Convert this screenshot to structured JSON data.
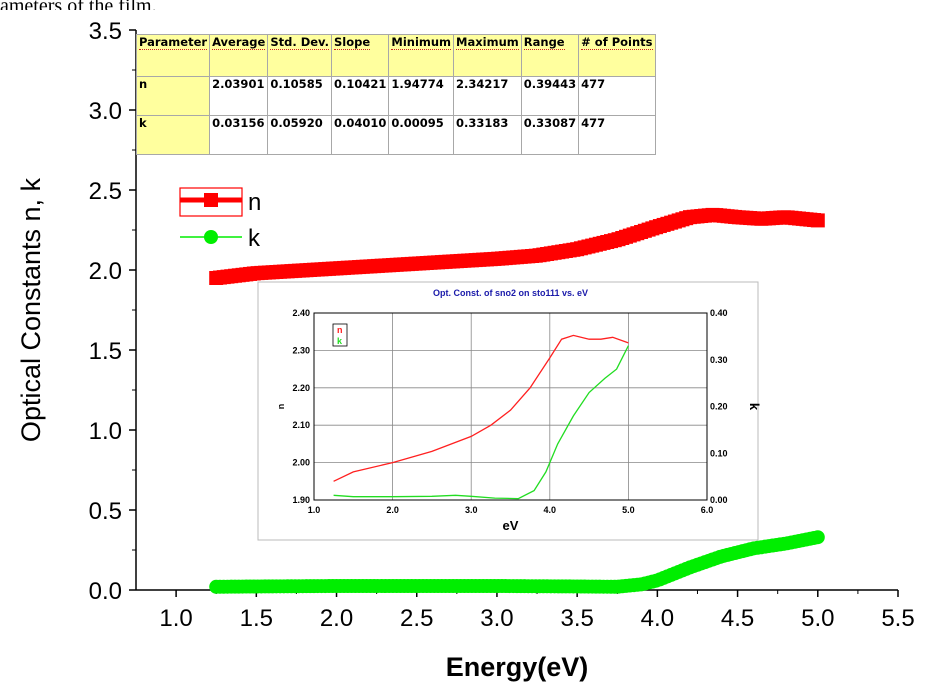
{
  "caption": "ameters of the film.",
  "stats_table": {
    "headers": [
      "Parameter",
      "Average",
      "Std. Dev.",
      "Slope",
      "Minimum",
      "Maximum",
      "Range",
      "# of Points"
    ],
    "rows": [
      [
        "n",
        "2.03901",
        "0.10585",
        "0.10421",
        "1.94774",
        "2.34217",
        "0.39443",
        "477"
      ],
      [
        "k",
        "0.03156",
        "0.05920",
        "0.04010",
        "0.00095",
        "0.33183",
        "0.33087",
        "477"
      ]
    ]
  },
  "chart_data": [
    {
      "type": "scatter",
      "title": "",
      "xlabel": "Energy(eV)",
      "ylabel": "Optical Constants n, k",
      "xlim": [
        0.75,
        5.5
      ],
      "ylim": [
        0.0,
        3.5
      ],
      "xticks": [
        "1.0",
        "1.5",
        "2.0",
        "2.5",
        "3.0",
        "3.5",
        "4.0",
        "4.5",
        "5.0",
        "5.5"
      ],
      "yticks": [
        "0.0",
        "0.5",
        "1.0",
        "1.5",
        "2.0",
        "2.5",
        "3.0",
        "3.5"
      ],
      "legend": "upper-left",
      "series": [
        {
          "name": "n",
          "color": "#ff0000",
          "marker": "square",
          "x": [
            1.25,
            1.5,
            2.0,
            2.5,
            3.0,
            3.25,
            3.5,
            3.75,
            4.0,
            4.2,
            4.35,
            4.5,
            4.65,
            4.8,
            5.0
          ],
          "y": [
            1.95,
            1.98,
            2.01,
            2.04,
            2.07,
            2.09,
            2.13,
            2.19,
            2.27,
            2.33,
            2.345,
            2.33,
            2.32,
            2.33,
            2.31
          ]
        },
        {
          "name": "k",
          "color": "#00ee00",
          "marker": "circle",
          "x": [
            1.25,
            1.5,
            2.0,
            2.5,
            3.0,
            3.5,
            3.75,
            3.9,
            4.0,
            4.2,
            4.4,
            4.6,
            4.8,
            5.0
          ],
          "y": [
            0.02,
            0.022,
            0.025,
            0.025,
            0.025,
            0.022,
            0.02,
            0.035,
            0.06,
            0.14,
            0.21,
            0.26,
            0.29,
            0.33
          ]
        }
      ]
    },
    {
      "type": "line",
      "title": "Opt. Const. of sno2 on sto111 vs. eV",
      "xlabel": "eV",
      "ylabel": "n",
      "ylabel_right": "k",
      "xlim": [
        1.0,
        6.0
      ],
      "ylim": [
        1.9,
        2.4
      ],
      "ylim_right": [
        0.0,
        0.4
      ],
      "xticks": [
        "1.0",
        "2.0",
        "3.0",
        "4.0",
        "5.0",
        "6.0"
      ],
      "yticks": [
        "1.90",
        "2.00",
        "2.10",
        "2.20",
        "2.30",
        "2.40"
      ],
      "yticks_right": [
        "0.00",
        "0.10",
        "0.20",
        "0.30",
        "0.40"
      ],
      "grid": true,
      "legend": "top-left",
      "series": [
        {
          "name": "n",
          "color": "#ff2020",
          "axis": "left",
          "x": [
            1.25,
            1.5,
            2.0,
            2.5,
            3.0,
            3.25,
            3.5,
            3.75,
            4.0,
            4.15,
            4.3,
            4.5,
            4.65,
            4.8,
            5.0
          ],
          "y": [
            1.95,
            1.975,
            2.0,
            2.03,
            2.07,
            2.1,
            2.14,
            2.2,
            2.28,
            2.33,
            2.34,
            2.33,
            2.33,
            2.335,
            2.32
          ]
        },
        {
          "name": "k",
          "color": "#22dd22",
          "axis": "right",
          "x": [
            1.25,
            1.5,
            2.0,
            2.5,
            2.8,
            3.0,
            3.3,
            3.6,
            3.8,
            3.95,
            4.1,
            4.3,
            4.5,
            4.7,
            4.85,
            5.0
          ],
          "y": [
            0.01,
            0.007,
            0.007,
            0.008,
            0.01,
            0.008,
            0.004,
            0.003,
            0.02,
            0.06,
            0.12,
            0.18,
            0.23,
            0.26,
            0.28,
            0.33
          ]
        }
      ]
    }
  ]
}
